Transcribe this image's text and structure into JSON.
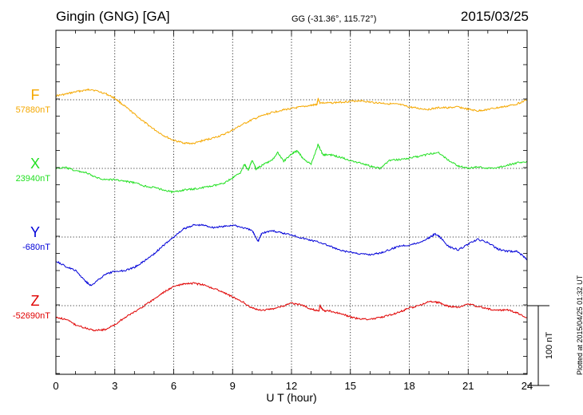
{
  "header": {
    "station": "Gingin (GNG)  [GA]",
    "coords": "GG (-31.36°, 115.72°)",
    "date": "2015/03/25"
  },
  "footer": {
    "plotted": "Plotted at 2015/04/25 01:32 UT"
  },
  "chart_data": {
    "type": "line",
    "xlabel": "U T (hour)",
    "xlim": [
      0,
      24
    ],
    "xticks": [
      0,
      3,
      6,
      9,
      12,
      15,
      18,
      21,
      24
    ],
    "grid": true,
    "scale_bar": {
      "label": "100 nT",
      "nT": 100
    },
    "series": [
      {
        "name": "F",
        "baseline_label": "57880nT",
        "baseline_nT": 57880,
        "color": "#f5a800",
        "points": [
          [
            0,
            57885
          ],
          [
            0.5,
            57887
          ],
          [
            1,
            57890
          ],
          [
            1.5,
            57892
          ],
          [
            1.8,
            57893
          ],
          [
            2.5,
            57888
          ],
          [
            3,
            57882
          ],
          [
            3.5,
            57872
          ],
          [
            4,
            57862
          ],
          [
            4.5,
            57852
          ],
          [
            5,
            57843
          ],
          [
            5.5,
            57835
          ],
          [
            6,
            57829
          ],
          [
            6.5,
            57826
          ],
          [
            7,
            57825
          ],
          [
            7.5,
            57829
          ],
          [
            8,
            57832
          ],
          [
            8.5,
            57836
          ],
          [
            9,
            57842
          ],
          [
            9.5,
            57849
          ],
          [
            10,
            57855
          ],
          [
            10.5,
            57860
          ],
          [
            11,
            57864
          ],
          [
            11.5,
            57867
          ],
          [
            12,
            57869
          ],
          [
            12.5,
            57871
          ],
          [
            13,
            57873
          ],
          [
            13.3,
            57874
          ],
          [
            13.35,
            57882
          ],
          [
            13.45,
            57876
          ],
          [
            14,
            57876
          ],
          [
            14.5,
            57877
          ],
          [
            15,
            57878
          ],
          [
            15.5,
            57879
          ],
          [
            16,
            57877
          ],
          [
            16.5,
            57876
          ],
          [
            17,
            57875
          ],
          [
            17.5,
            57874
          ],
          [
            18,
            57871
          ],
          [
            18.5,
            57869
          ],
          [
            19,
            57868
          ],
          [
            19.5,
            57870
          ],
          [
            20,
            57870
          ],
          [
            20.5,
            57871
          ],
          [
            21,
            57868
          ],
          [
            21.5,
            57866
          ],
          [
            22,
            57868
          ],
          [
            22.5,
            57870
          ],
          [
            23,
            57872
          ],
          [
            23.5,
            57875
          ],
          [
            24,
            57880
          ]
        ]
      },
      {
        "name": "X",
        "baseline_label": "23940nT",
        "baseline_nT": 23940,
        "color": "#22e022",
        "points": [
          [
            0,
            23940
          ],
          [
            0.5,
            23941
          ],
          [
            1,
            23937
          ],
          [
            1.5,
            23935
          ],
          [
            2,
            23929
          ],
          [
            2.5,
            23926
          ],
          [
            3,
            23926
          ],
          [
            3.5,
            23924
          ],
          [
            4,
            23922
          ],
          [
            4.5,
            23918
          ],
          [
            5,
            23916
          ],
          [
            5.5,
            23913
          ],
          [
            6,
            23910
          ],
          [
            6.5,
            23913
          ],
          [
            7,
            23914
          ],
          [
            7.5,
            23916
          ],
          [
            8,
            23918
          ],
          [
            8.5,
            23921
          ],
          [
            9,
            23928
          ],
          [
            9.4,
            23935
          ],
          [
            9.6,
            23945
          ],
          [
            9.8,
            23938
          ],
          [
            10,
            23950
          ],
          [
            10.2,
            23939
          ],
          [
            10.5,
            23944
          ],
          [
            11,
            23950
          ],
          [
            11.3,
            23960
          ],
          [
            11.6,
            23949
          ],
          [
            12,
            23958
          ],
          [
            12.3,
            23962
          ],
          [
            12.6,
            23952
          ],
          [
            13,
            23945
          ],
          [
            13.35,
            23970
          ],
          [
            13.6,
            23957
          ],
          [
            14,
            23957
          ],
          [
            14.5,
            23954
          ],
          [
            15,
            23950
          ],
          [
            15.5,
            23947
          ],
          [
            16,
            23943
          ],
          [
            16.5,
            23940
          ],
          [
            17,
            23950
          ],
          [
            17.5,
            23951
          ],
          [
            18,
            23953
          ],
          [
            18.5,
            23955
          ],
          [
            19,
            23958
          ],
          [
            19.5,
            23960
          ],
          [
            20,
            23950
          ],
          [
            20.5,
            23943
          ],
          [
            21,
            23940
          ],
          [
            21.5,
            23942
          ],
          [
            22,
            23940
          ],
          [
            22.5,
            23941
          ],
          [
            23,
            23944
          ],
          [
            23.5,
            23947
          ],
          [
            24,
            23949
          ]
        ]
      },
      {
        "name": "Y",
        "baseline_label": "-680nT",
        "baseline_nT": -680,
        "color": "#0000d8",
        "points": [
          [
            0,
            -710
          ],
          [
            0.5,
            -717
          ],
          [
            1,
            -722
          ],
          [
            1.5,
            -735
          ],
          [
            1.8,
            -741
          ],
          [
            2.5,
            -727
          ],
          [
            3,
            -723
          ],
          [
            3.5,
            -722
          ],
          [
            4,
            -718
          ],
          [
            4.5,
            -710
          ],
          [
            5,
            -701
          ],
          [
            5.5,
            -690
          ],
          [
            6,
            -680
          ],
          [
            6.5,
            -670
          ],
          [
            7,
            -665
          ],
          [
            7.5,
            -665
          ],
          [
            8,
            -668
          ],
          [
            8.5,
            -667
          ],
          [
            9,
            -665
          ],
          [
            9.5,
            -668
          ],
          [
            10,
            -672
          ],
          [
            10.3,
            -685
          ],
          [
            10.5,
            -675
          ],
          [
            11,
            -672
          ],
          [
            11.5,
            -675
          ],
          [
            12,
            -677
          ],
          [
            12.5,
            -681
          ],
          [
            13,
            -684
          ],
          [
            13.5,
            -687
          ],
          [
            14,
            -692
          ],
          [
            14.5,
            -697
          ],
          [
            15,
            -699
          ],
          [
            15.5,
            -701
          ],
          [
            16,
            -702
          ],
          [
            16.5,
            -700
          ],
          [
            17,
            -696
          ],
          [
            17.5,
            -691
          ],
          [
            18,
            -690
          ],
          [
            18.5,
            -687
          ],
          [
            19,
            -681
          ],
          [
            19.3,
            -676
          ],
          [
            19.6,
            -681
          ],
          [
            20,
            -692
          ],
          [
            20.5,
            -696
          ],
          [
            21,
            -689
          ],
          [
            21.5,
            -683
          ],
          [
            22,
            -687
          ],
          [
            22.5,
            -695
          ],
          [
            23,
            -698
          ],
          [
            23.5,
            -698
          ],
          [
            24,
            -708
          ]
        ]
      },
      {
        "name": "Z",
        "baseline_label": "-52690nT",
        "baseline_nT": -52690,
        "color": "#e00000",
        "points": [
          [
            0,
            -52705
          ],
          [
            0.5,
            -52707
          ],
          [
            1,
            -52714
          ],
          [
            1.5,
            -52718
          ],
          [
            2,
            -52721
          ],
          [
            2.5,
            -52720
          ],
          [
            3,
            -52714
          ],
          [
            3.5,
            -52705
          ],
          [
            4,
            -52698
          ],
          [
            4.5,
            -52690
          ],
          [
            5,
            -52682
          ],
          [
            5.5,
            -52673
          ],
          [
            6,
            -52666
          ],
          [
            6.5,
            -52663
          ],
          [
            7,
            -52662
          ],
          [
            7.5,
            -52664
          ],
          [
            8,
            -52668
          ],
          [
            8.5,
            -52673
          ],
          [
            9,
            -52679
          ],
          [
            9.5,
            -52685
          ],
          [
            10,
            -52693
          ],
          [
            10.5,
            -52696
          ],
          [
            11,
            -52694
          ],
          [
            11.5,
            -52691
          ],
          [
            12,
            -52687
          ],
          [
            12.5,
            -52689
          ],
          [
            13,
            -52694
          ],
          [
            13.4,
            -52697
          ],
          [
            13.45,
            -52689
          ],
          [
            13.6,
            -52696
          ],
          [
            14,
            -52697
          ],
          [
            14.5,
            -52700
          ],
          [
            15,
            -52704
          ],
          [
            15.5,
            -52707
          ],
          [
            16,
            -52707
          ],
          [
            16.5,
            -52705
          ],
          [
            17,
            -52702
          ],
          [
            17.5,
            -52698
          ],
          [
            18,
            -52693
          ],
          [
            18.5,
            -52690
          ],
          [
            19,
            -52685
          ],
          [
            19.5,
            -52686
          ],
          [
            20,
            -52691
          ],
          [
            20.5,
            -52692
          ],
          [
            21,
            -52688
          ],
          [
            21.5,
            -52691
          ],
          [
            22,
            -52694
          ],
          [
            22.5,
            -52696
          ],
          [
            23,
            -52695
          ],
          [
            23.5,
            -52699
          ],
          [
            24,
            -52705
          ]
        ]
      }
    ]
  }
}
